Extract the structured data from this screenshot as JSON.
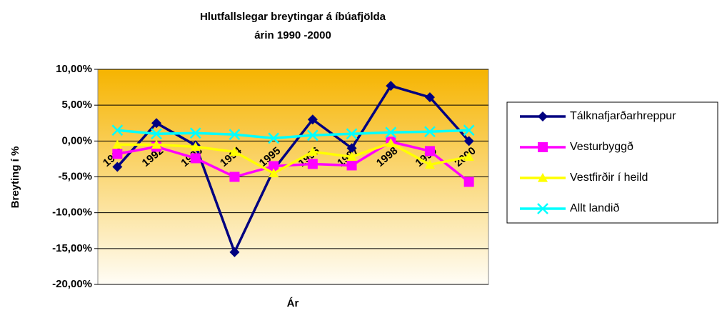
{
  "chart_data": {
    "type": "line",
    "title": "Hlutfallslegar breytingar á íbúafjölda",
    "subtitle": "árin 1990 -2000",
    "x_label": "Ár",
    "y_label": "Breyting í %",
    "categories": [
      "1991",
      "1992",
      "1993",
      "1994",
      "1995",
      "1996",
      "1997",
      "1998",
      "1999",
      "2000"
    ],
    "series": [
      {
        "name": "Tálknafjarðarhreppur",
        "color": "#000080",
        "marker": "diamond",
        "values": [
          -3.6,
          2.5,
          -0.6,
          -15.5,
          -4.0,
          3.0,
          -1.0,
          7.7,
          6.1,
          0.0
        ]
      },
      {
        "name": "Vesturbyggð",
        "color": "#ff00ff",
        "marker": "square",
        "values": [
          -1.8,
          -0.8,
          -2.4,
          -5.0,
          -3.5,
          -3.2,
          -3.4,
          -0.1,
          -1.4,
          -5.7
        ]
      },
      {
        "name": "Vestfirðir í heild",
        "color": "#ffff00",
        "marker": "triangle",
        "values": [
          -0.5,
          -0.5,
          -0.8,
          -1.5,
          -4.5,
          -1.5,
          -2.2,
          -0.3,
          -3.3,
          -2.2
        ]
      },
      {
        "name": "Allt landið",
        "color": "#00ffff",
        "marker": "x",
        "values": [
          1.5,
          1.0,
          1.1,
          0.9,
          0.4,
          0.8,
          1.0,
          1.2,
          1.3,
          1.5
        ]
      }
    ],
    "ylim": [
      -20,
      10
    ],
    "yticks": [
      {
        "value": -20,
        "label": "-20,00%"
      },
      {
        "value": -15,
        "label": "-15,00%"
      },
      {
        "value": -10,
        "label": "-10,00%"
      },
      {
        "value": -5,
        "label": "-5,00%"
      },
      {
        "value": 0,
        "label": "0,00%"
      },
      {
        "value": 5,
        "label": "5,00%"
      },
      {
        "value": 10,
        "label": "10,00%"
      }
    ],
    "grid": true,
    "legend": "right"
  }
}
